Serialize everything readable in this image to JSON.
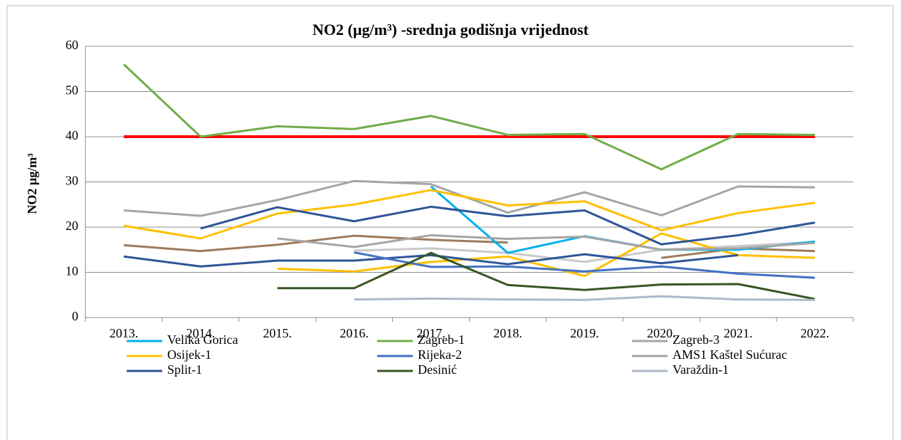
{
  "chart_data": {
    "type": "line",
    "title": "NO2 (µg/m³) -srednja godišnja vrijednost",
    "y_label": "NO2 µg/m³",
    "categories": [
      "2013.",
      "2014.",
      "2015.",
      "2016.",
      "2017.",
      "2018.",
      "2019.",
      "2020.",
      "2021.",
      "2022."
    ],
    "ylim": [
      0,
      60
    ],
    "yticks": [
      0,
      10,
      20,
      30,
      40,
      50,
      60
    ],
    "grid": true,
    "series": [
      {
        "color": "#ff0000",
        "values": [
          40,
          40,
          40,
          40,
          40,
          40,
          40,
          40,
          40,
          40
        ]
      },
      {
        "color": "#9e7b5a",
        "values": [
          16,
          14.7,
          16.1,
          18.1,
          17.2,
          16.6,
          null,
          13.2,
          15.3,
          14.7
        ]
      },
      {
        "color": "#c9c9c9",
        "values": [
          null,
          null,
          null,
          14.8,
          15.3,
          14.3,
          12.3,
          15,
          15.8,
          16.7
        ]
      },
      {
        "color": "#ffc000",
        "values": [
          null,
          null,
          10.8,
          10.2,
          12.3,
          13.5,
          9.2,
          18.6,
          13.8,
          13.2
        ]
      },
      {
        "color": "#2f5597",
        "values": [
          13.5,
          11.3,
          12.6,
          12.6,
          13.8,
          11.8,
          14,
          12,
          13.8,
          null
        ]
      },
      {
        "name": "Velika Gorica",
        "color": "#00b0f0",
        "values": [
          null,
          null,
          null,
          null,
          29,
          14.3,
          18,
          15,
          15,
          16.8
        ]
      },
      {
        "name": "Zagreb-1",
        "color": "#70ad47",
        "values": [
          56,
          40,
          42.3,
          41.7,
          44.6,
          40.4,
          40.6,
          32.8,
          40.6,
          40.4
        ]
      },
      {
        "name": "Zagreb-3",
        "color": "#a5a5a5",
        "values": [
          23.7,
          22.5,
          26,
          30.2,
          29.5,
          23.2,
          27.7,
          22.6,
          29,
          28.8
        ]
      },
      {
        "name": "Osijek-1",
        "color": "#ffc000",
        "values": [
          20.3,
          17.5,
          23,
          25,
          28.2,
          24.8,
          25.7,
          19.3,
          23.1,
          25.4
        ]
      },
      {
        "name": "Rijeka-2",
        "color": "#4472c4",
        "values": [
          null,
          null,
          null,
          14.4,
          11.2,
          11.3,
          10.2,
          11.3,
          9.7,
          8.8
        ]
      },
      {
        "name": "AMS1 Kaštel Sućurac",
        "color": "#a5a5a5",
        "values": [
          null,
          null,
          17.5,
          15.6,
          18.2,
          17.4,
          17.9,
          15,
          15.3,
          16.5
        ]
      },
      {
        "name": "Split-1",
        "color": "#2f5597",
        "values": [
          null,
          19.7,
          24.4,
          21.3,
          24.5,
          22.4,
          23.7,
          16.2,
          18.2,
          21
        ]
      },
      {
        "name": "Desinić",
        "color": "#375623",
        "values": [
          null,
          null,
          6.5,
          6.5,
          14.3,
          7.2,
          6.1,
          7.3,
          7.4,
          4.1
        ]
      },
      {
        "name": "Varaždin-1",
        "color": "#adb9ca",
        "values": [
          null,
          null,
          null,
          4,
          4.2,
          4,
          3.9,
          4.7,
          4,
          3.9
        ]
      }
    ]
  }
}
